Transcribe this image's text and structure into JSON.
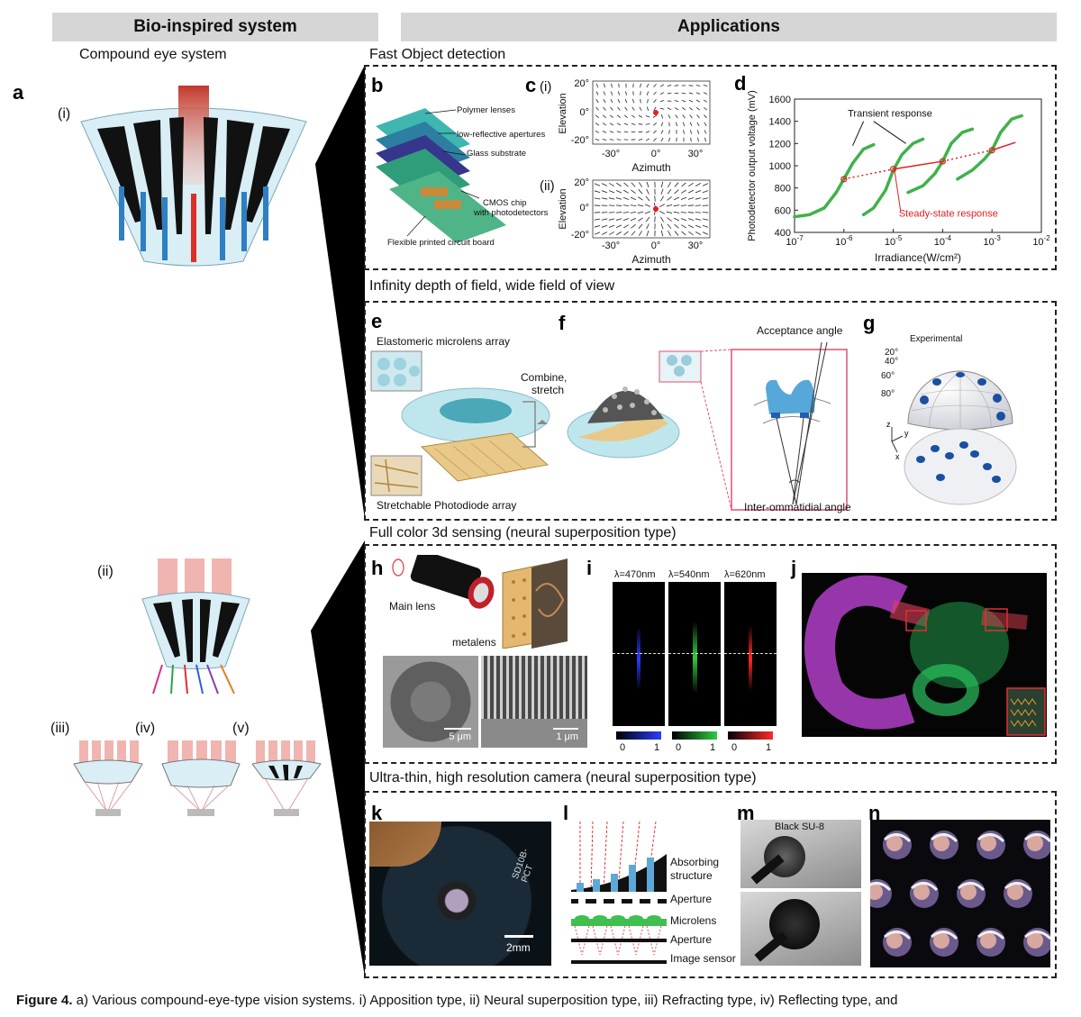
{
  "headers": {
    "left": "Bio-inspired system",
    "right": "Applications"
  },
  "left": {
    "title": "Compound eye system",
    "panel_a": "a",
    "labels": {
      "i": "(i)",
      "ii": "(ii)",
      "iii": "(iii)",
      "iv": "(iv)",
      "v": "(v)"
    }
  },
  "sections": {
    "s1": "Fast Object detection",
    "s2": "Infinity depth of field, wide field of view",
    "s3": "Full color 3d sensing (neural superposition type)",
    "s4": "Ultra-thin, high resolution camera (neural superposition type)"
  },
  "panel_b": {
    "letter": "b",
    "labels": [
      "Polymer lenses",
      "low-reflective apertures",
      "Glass substrate",
      "CMOS chip",
      "with photodetectors",
      "Flexible printed circuit board"
    ]
  },
  "panel_c": {
    "letter": "c",
    "sub_i": "(i)",
    "sub_ii": "(ii)",
    "ylabel": "Elevation",
    "xlabel": "Azimuth",
    "yticks": [
      "20°",
      "0°",
      "-20°"
    ],
    "xticks": [
      "-30°",
      "0°",
      "30°"
    ]
  },
  "panel_d": {
    "letter": "d"
  },
  "panel_e": {
    "letter": "e",
    "labels": {
      "top": "Elastomeric microlens array",
      "combine1": "Combine,",
      "combine2": "stretch",
      "bottom": "Stretchable Photodiode array"
    }
  },
  "panel_f": {
    "letter": "f",
    "labels": {
      "acceptance": "Acceptance angle",
      "inter": "Inter-ommatidial angle"
    }
  },
  "panel_g": {
    "letter": "g",
    "labels": {
      "title": "Experimental",
      "a20": "20°",
      "a40": "40°",
      "a60": "60°",
      "a80": "80°",
      "z": "z",
      "y": "y",
      "x": "x"
    }
  },
  "panel_h": {
    "letter": "h",
    "labels": {
      "main_lens": "Main lens",
      "metalens": "metalens",
      "scale1": "5 μm",
      "scale2": "1 μm"
    }
  },
  "panel_i": {
    "letter": "i",
    "wavelengths": [
      "λ=470nm",
      "λ=540nm",
      "λ=620nm"
    ],
    "colorbar": [
      "0",
      "1"
    ],
    "colors": [
      "#2b3cff",
      "#2ecc40",
      "#ff2a2a"
    ]
  },
  "panel_j": {
    "letter": "j"
  },
  "panel_k": {
    "letter": "k",
    "scale": "2mm",
    "chip_text": "SD10B-PCT"
  },
  "panel_l": {
    "letter": "l",
    "labels": [
      "Absorbing",
      "structure",
      "Aperture",
      "Microlens",
      "Aperture",
      "Image sensor"
    ]
  },
  "panel_m": {
    "letter": "m",
    "label": "Black SU-8"
  },
  "panel_n": {
    "letter": "n"
  },
  "chart_data": {
    "type": "line",
    "xlabel": "Irradiance(W/cm²)",
    "ylabel": "Photodetector output voltage (mV)",
    "xscale": "log",
    "xlim": [
      1e-07,
      0.01
    ],
    "ylim": [
      400,
      1600
    ],
    "xticks": [
      "10-7",
      "10-6",
      "10-5",
      "10-4",
      "10-3",
      "10-2"
    ],
    "yticks": [
      400,
      600,
      800,
      1000,
      1200,
      1400,
      1600
    ],
    "annotations": [
      "Transient response",
      "Steady-state response"
    ],
    "series": [
      {
        "name": "Transient response",
        "color": "#3fb24a",
        "curves": [
          {
            "x": [
              1e-07,
              2e-07,
              4e-07,
              7e-07,
              1e-06,
              1.5e-06,
              2.5e-06,
              4e-06
            ],
            "y": [
              540,
              560,
              620,
              760,
              880,
              1020,
              1150,
              1190
            ]
          },
          {
            "x": [
              2.5e-06,
              4e-06,
              7e-06,
              1e-05,
              1.5e-05,
              2.5e-05,
              4e-05
            ],
            "y": [
              560,
              620,
              780,
              960,
              1100,
              1200,
              1240
            ]
          },
          {
            "x": [
              2e-05,
              4e-05,
              7e-05,
              0.0001,
              0.00015,
              0.00025,
              0.0004
            ],
            "y": [
              760,
              820,
              930,
              1040,
              1200,
              1300,
              1330
            ]
          },
          {
            "x": [
              0.0002,
              0.0004,
              0.0007,
              0.001,
              0.0015,
              0.0025,
              0.004
            ],
            "y": [
              880,
              960,
              1060,
              1140,
              1300,
              1420,
              1450
            ]
          }
        ]
      },
      {
        "name": "Steady-state response",
        "color": "#e02020",
        "x": [
          1e-06,
          1e-05,
          0.0001,
          0.001,
          0.003
        ],
        "y": [
          880,
          970,
          1040,
          1140,
          1210
        ]
      }
    ]
  },
  "caption": {
    "bold": "Figure 4.",
    "text": " a) Various compound-eye-type vision systems. i) Apposition type, ii) Neural superposition type, iii) Refracting type, iv) Reflecting type, and"
  }
}
